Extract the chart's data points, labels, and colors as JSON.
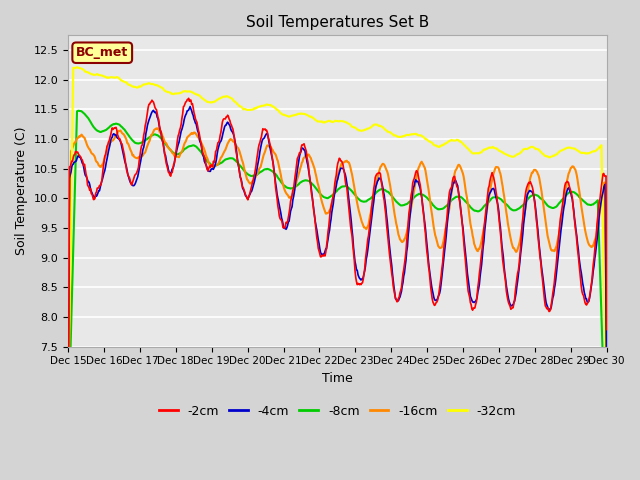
{
  "title": "Soil Temperatures Set B",
  "xlabel": "Time",
  "ylabel": "Soil Temperature (C)",
  "ylim": [
    7.5,
    12.75
  ],
  "yticks": [
    7.5,
    8.0,
    8.5,
    9.0,
    9.5,
    10.0,
    10.5,
    11.0,
    11.5,
    12.0,
    12.5
  ],
  "fig_bg_color": "#d4d4d4",
  "plot_bg_color": "#e8e8e8",
  "grid_color": "#ffffff",
  "label_box_text": "BC_met",
  "label_box_bg": "#ffff99",
  "label_box_edge": "#8b0000",
  "label_box_text_color": "#8b0000",
  "series": {
    "depths": [
      "-2cm",
      "-4cm",
      "-8cm",
      "-16cm",
      "-32cm"
    ],
    "colors": [
      "#ff0000",
      "#0000cc",
      "#00cc00",
      "#ff8800",
      "#ffff00"
    ],
    "linewidths": [
      1.2,
      1.2,
      1.5,
      1.5,
      1.5
    ]
  },
  "xticklabels": [
    "Dec 15",
    "Dec 16",
    "Dec 17",
    "Dec 18",
    "Dec 19",
    "Dec 20",
    "Dec 21",
    "Dec 22",
    "Dec 23",
    "Dec 24",
    "Dec 25",
    "Dec 26",
    "Dec 27",
    "Dec 28",
    "Dec 29",
    "Dec 30"
  ],
  "n_points": 720,
  "title_fontsize": 11,
  "axis_label_fontsize": 9,
  "tick_fontsize": 8
}
